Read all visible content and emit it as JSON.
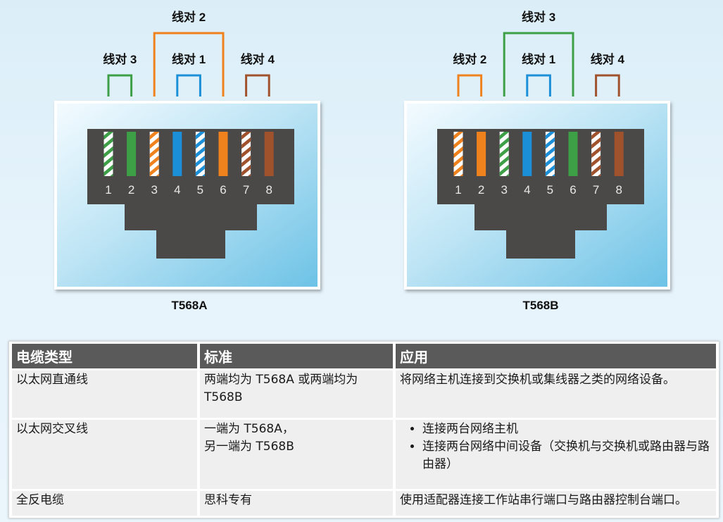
{
  "connectors": [
    {
      "standard": "T568A",
      "pairs": [
        {
          "label": "线对 3",
          "color": "#3da047",
          "pins": [
            1,
            2
          ]
        },
        {
          "label": "线对 2",
          "color": "#f0821e",
          "pins": [
            3,
            6
          ]
        },
        {
          "label": "线对 1",
          "color": "#1b8fd8",
          "pins": [
            4,
            5
          ]
        },
        {
          "label": "线对 4",
          "color": "#a0522d",
          "pins": [
            7,
            8
          ]
        }
      ],
      "wires": [
        {
          "pin": "1",
          "color": "#3da047",
          "striped": true
        },
        {
          "pin": "2",
          "color": "#3da047",
          "striped": false
        },
        {
          "pin": "3",
          "color": "#f0821e",
          "striped": true
        },
        {
          "pin": "4",
          "color": "#1b8fd8",
          "striped": false
        },
        {
          "pin": "5",
          "color": "#1b8fd8",
          "striped": true
        },
        {
          "pin": "6",
          "color": "#f0821e",
          "striped": false
        },
        {
          "pin": "7",
          "color": "#a0522d",
          "striped": true
        },
        {
          "pin": "8",
          "color": "#a0522d",
          "striped": false
        }
      ]
    },
    {
      "standard": "T568B",
      "pairs": [
        {
          "label": "线对 2",
          "color": "#f0821e",
          "pins": [
            1,
            2
          ]
        },
        {
          "label": "线对 3",
          "color": "#3da047",
          "pins": [
            3,
            6
          ]
        },
        {
          "label": "线对 1",
          "color": "#1b8fd8",
          "pins": [
            4,
            5
          ]
        },
        {
          "label": "线对 4",
          "color": "#a0522d",
          "pins": [
            7,
            8
          ]
        }
      ],
      "wires": [
        {
          "pin": "1",
          "color": "#f0821e",
          "striped": true
        },
        {
          "pin": "2",
          "color": "#f0821e",
          "striped": false
        },
        {
          "pin": "3",
          "color": "#3da047",
          "striped": true
        },
        {
          "pin": "4",
          "color": "#1b8fd8",
          "striped": false
        },
        {
          "pin": "5",
          "color": "#1b8fd8",
          "striped": true
        },
        {
          "pin": "6",
          "color": "#3da047",
          "striped": false
        },
        {
          "pin": "7",
          "color": "#a0522d",
          "striped": true
        },
        {
          "pin": "8",
          "color": "#a0522d",
          "striped": false
        }
      ]
    }
  ],
  "table": {
    "headers": [
      "电缆类型",
      "标准",
      "应用"
    ],
    "rows": [
      {
        "type": "以太网直通线",
        "standard": "两端均为 T568A 或两端均为 T568B",
        "application": "将网络主机连接到交换机或集线器之类的网络设备。"
      },
      {
        "type": "以太网交叉线",
        "standard_lines": [
          "一端为 T568A，",
          "另一端为 T568B"
        ],
        "application_items": [
          "连接两台网络主机",
          "连接两台网络中间设备（交换机与交换机或路由器与路由器）"
        ]
      },
      {
        "type": "全反电缆",
        "standard": "思科专有",
        "application": "使用适配器连接工作站串行端口与路由器控制台端口。"
      }
    ]
  },
  "colors": {
    "header_bg": "#5a5a5a",
    "cell_bg": "#efefef",
    "jack_body": "#4b4848",
    "jack_frame": "#9fd6ee"
  }
}
